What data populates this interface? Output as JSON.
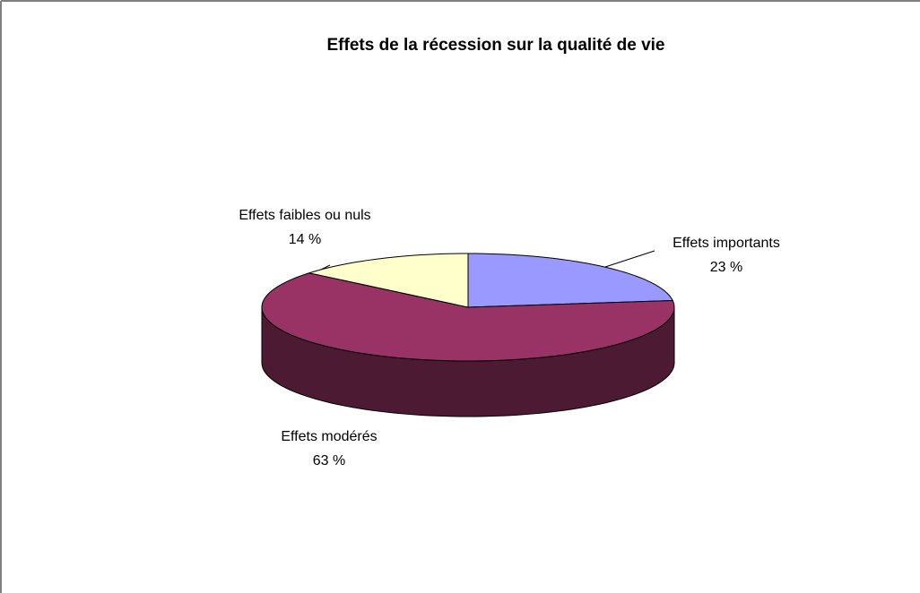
{
  "chart_data": {
    "type": "pie3d",
    "title": "Effets de la récession sur la qualité de vie",
    "categories": [
      "Effets importants",
      "Effets modérés",
      "Effets faibles ou nuls"
    ],
    "values": [
      23,
      63,
      14
    ],
    "value_labels": [
      "23 %",
      "63 %",
      "14 %"
    ],
    "colors": [
      "#9999ff",
      "#993366",
      "#ffffcc"
    ]
  }
}
